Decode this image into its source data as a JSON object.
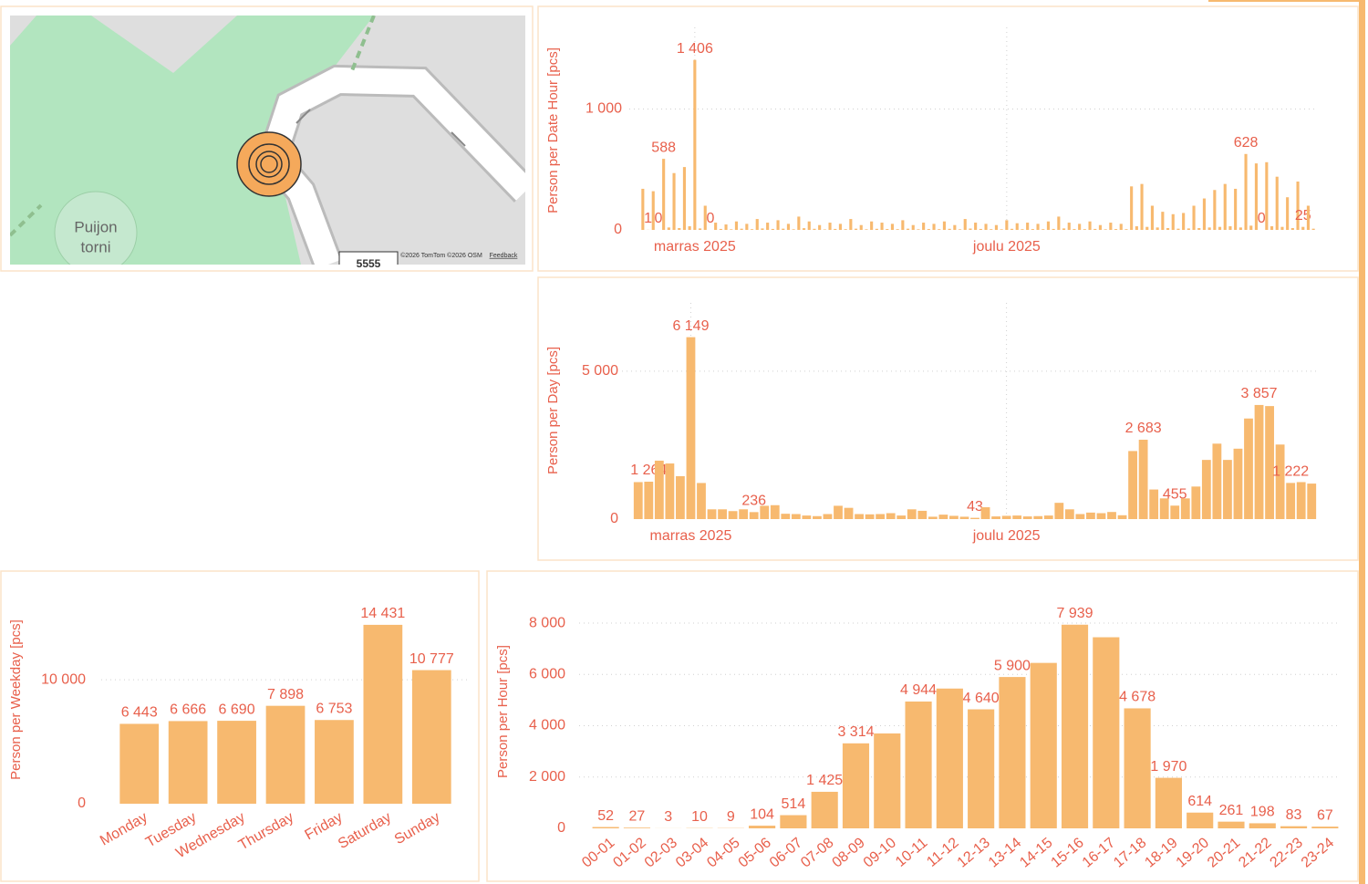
{
  "map": {
    "place_label": [
      "Puijon",
      "torni"
    ],
    "attribution": "©2026 TomTom ©2026 OSM",
    "feedback": "Feedback",
    "scale": "5555"
  },
  "chart_data": [
    {
      "type": "bar",
      "ylabel": "Person per Date Hour [pcs]",
      "color": "#f7b96f",
      "grid": true,
      "ylim": [
        0,
        1600
      ],
      "yticks": [
        0,
        {
          "value": 1000,
          "label": "1 000"
        }
      ],
      "categories": [
        null,
        null,
        null,
        null,
        null,
        null,
        null,
        null,
        null,
        null,
        "marras 2025",
        null,
        null,
        null,
        null,
        null,
        null,
        null,
        null,
        null,
        null,
        null,
        null,
        null,
        null,
        null,
        null,
        null,
        null,
        null,
        null,
        null,
        null,
        null,
        null,
        null,
        null,
        null,
        null,
        null,
        null,
        null,
        null,
        null,
        null,
        null,
        null,
        null,
        null,
        null,
        null,
        null,
        null,
        null,
        null,
        null,
        null,
        null,
        null,
        null,
        null,
        null,
        null,
        null,
        null,
        null,
        null,
        null,
        null,
        null,
        "joulu 2025",
        null,
        null,
        null,
        null,
        null,
        null,
        null,
        null,
        null,
        null,
        null,
        null,
        null,
        null,
        null,
        null,
        null,
        null,
        null,
        null,
        null,
        null,
        null,
        null,
        null,
        null,
        null,
        null,
        null,
        null,
        null,
        null,
        null,
        null,
        null,
        null,
        null,
        null,
        null,
        null,
        null,
        null,
        null,
        null,
        null,
        null,
        null,
        null,
        null,
        null,
        null,
        null,
        null,
        null,
        null,
        null,
        null,
        null,
        null
      ],
      "values": [
        340,
        1,
        320,
        0,
        588,
        20,
        470,
        15,
        520,
        30,
        1406,
        12,
        200,
        0,
        60,
        8,
        45,
        5,
        70,
        10,
        50,
        6,
        90,
        12,
        60,
        8,
        80,
        10,
        50,
        5,
        110,
        14,
        70,
        9,
        40,
        4,
        60,
        8,
        50,
        6,
        90,
        10,
        40,
        5,
        70,
        9,
        60,
        7,
        50,
        6,
        80,
        10,
        40,
        5,
        60,
        7,
        50,
        6,
        70,
        9,
        40,
        5,
        90,
        11,
        60,
        8,
        50,
        6,
        40,
        5,
        80,
        9,
        55,
        6,
        60,
        7,
        50,
        6,
        70,
        8,
        110,
        12,
        60,
        7,
        50,
        6,
        70,
        8,
        40,
        5,
        60,
        7,
        50,
        6,
        360,
        30,
        380,
        25,
        200,
        20,
        150,
        15,
        130,
        10,
        140,
        12,
        200,
        15,
        260,
        20,
        330,
        25,
        380,
        30,
        340,
        20,
        628,
        35,
        550,
        0,
        560,
        30,
        440,
        25,
        270,
        15,
        400,
        25,
        200,
        10
      ],
      "value_labels": [
        null,
        "1",
        null,
        "0",
        "588",
        null,
        null,
        null,
        null,
        null,
        "1 406",
        null,
        null,
        "0",
        null,
        null,
        null,
        null,
        null,
        null,
        null,
        null,
        null,
        null,
        null,
        null,
        null,
        null,
        null,
        null,
        null,
        null,
        null,
        null,
        null,
        null,
        null,
        null,
        null,
        null,
        null,
        null,
        null,
        null,
        null,
        null,
        null,
        null,
        null,
        null,
        null,
        null,
        null,
        null,
        null,
        null,
        null,
        null,
        null,
        null,
        null,
        null,
        null,
        null,
        null,
        null,
        null,
        null,
        null,
        null,
        null,
        null,
        null,
        null,
        null,
        null,
        null,
        null,
        null,
        null,
        null,
        null,
        null,
        null,
        null,
        null,
        null,
        null,
        null,
        null,
        null,
        null,
        null,
        null,
        null,
        null,
        null,
        null,
        null,
        null,
        null,
        null,
        null,
        null,
        null,
        null,
        null,
        null,
        null,
        null,
        null,
        null,
        null,
        null,
        null,
        null,
        "628",
        null,
        null,
        "0",
        null,
        null,
        null,
        null,
        null,
        null,
        null,
        "25",
        null,
        null
      ]
    },
    {
      "type": "bar",
      "ylabel": "Person per Day [pcs]",
      "color": "#f7b96f",
      "grid": true,
      "ylim": [
        0,
        7000
      ],
      "yticks": [
        0,
        {
          "value": 5000,
          "label": "5 000"
        }
      ],
      "categories": [
        null,
        null,
        null,
        null,
        null,
        "marras 2025",
        null,
        null,
        null,
        null,
        null,
        null,
        null,
        null,
        null,
        null,
        null,
        null,
        null,
        null,
        null,
        null,
        null,
        null,
        null,
        null,
        null,
        null,
        null,
        null,
        null,
        null,
        null,
        null,
        null,
        "joulu 2025",
        null,
        null,
        null,
        null,
        null,
        null,
        null,
        null,
        null,
        null,
        null,
        null,
        null,
        null,
        null,
        null,
        null,
        null,
        null,
        null,
        null,
        null,
        null,
        null,
        null,
        null,
        null,
        null,
        null
      ],
      "values": [
        1250,
        1264,
        1975,
        1880,
        1450,
        6149,
        1220,
        330,
        330,
        270,
        330,
        236,
        450,
        470,
        180,
        170,
        120,
        100,
        170,
        450,
        380,
        170,
        160,
        170,
        200,
        120,
        330,
        280,
        80,
        150,
        110,
        80,
        43,
        400,
        90,
        110,
        120,
        90,
        100,
        120,
        550,
        330,
        170,
        220,
        200,
        240,
        130,
        2300,
        2683,
        1000,
        700,
        455,
        700,
        1100,
        2000,
        2550,
        2000,
        2380,
        3400,
        3857,
        3820,
        2520,
        1222,
        1250,
        1200
      ],
      "value_labels": [
        null,
        "1 264",
        null,
        null,
        null,
        "6 149",
        null,
        null,
        null,
        null,
        null,
        "236",
        null,
        null,
        null,
        null,
        null,
        null,
        null,
        null,
        null,
        null,
        null,
        null,
        null,
        null,
        null,
        null,
        null,
        null,
        null,
        null,
        "43",
        null,
        null,
        null,
        null,
        null,
        null,
        null,
        null,
        null,
        null,
        null,
        null,
        null,
        null,
        null,
        "2 683",
        null,
        null,
        "455",
        null,
        null,
        null,
        null,
        null,
        null,
        null,
        "3 857",
        null,
        null,
        "1 222",
        null,
        null
      ]
    },
    {
      "type": "bar",
      "ylabel": "Person per Weekday [pcs]",
      "color": "#f7b96f",
      "grid": true,
      "ylim": [
        0,
        17000
      ],
      "yticks": [
        0,
        {
          "value": 10000,
          "label": "10 000"
        }
      ],
      "categories": [
        "Monday",
        "Tuesday",
        "Wednesday",
        "Thursday",
        "Friday",
        "Saturday",
        "Sunday"
      ],
      "values": [
        6443,
        6666,
        6690,
        7898,
        6753,
        14431,
        10777
      ],
      "value_labels": [
        "6 443",
        "6 666",
        "6 690",
        "7 898",
        "6 753",
        "14 431",
        "10 777"
      ]
    },
    {
      "type": "bar",
      "ylabel": "Person per Hour [pcs]",
      "color": "#f7b96f",
      "grid": true,
      "ylim": [
        0,
        8500
      ],
      "yticks": [
        0,
        {
          "value": 2000,
          "label": "2 000"
        },
        {
          "value": 4000,
          "label": "4 000"
        },
        {
          "value": 6000,
          "label": "6 000"
        },
        {
          "value": 8000,
          "label": "8 000"
        }
      ],
      "categories": [
        "00-01",
        "01-02",
        "02-03",
        "03-04",
        "04-05",
        "05-06",
        "06-07",
        "07-08",
        "08-09",
        "09-10",
        "10-11",
        "11-12",
        "12-13",
        "13-14",
        "14-15",
        "15-16",
        "16-17",
        "17-18",
        "18-19",
        "19-20",
        "20-21",
        "21-22",
        "22-23",
        "23-24"
      ],
      "values": [
        52,
        27,
        3,
        10,
        9,
        104,
        514,
        1425,
        3314,
        3700,
        4944,
        5450,
        4640,
        5900,
        6450,
        7939,
        7450,
        4678,
        1970,
        614,
        261,
        198,
        83,
        67
      ],
      "value_labels": [
        "52",
        "27",
        "3",
        "10",
        "9",
        "104",
        "514",
        "1 425",
        "3 314",
        null,
        "4 944",
        null,
        "4 640",
        "5 900",
        null,
        "7 939",
        null,
        "4 678",
        "1 970",
        "614",
        "261",
        "198",
        "83",
        "67"
      ]
    }
  ]
}
